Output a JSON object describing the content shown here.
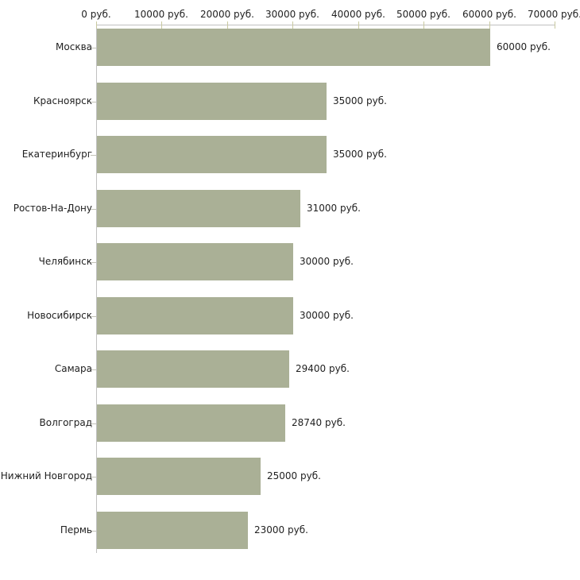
{
  "chart_data": {
    "type": "bar",
    "orientation": "horizontal",
    "title": "",
    "categories": [
      "Москва",
      "Красноярск",
      "Екатеринбург",
      "Ростов-На-Дону",
      "Челябинск",
      "Новосибирск",
      "Самара",
      "Волгоград",
      "Нижний Новгород",
      "Пермь"
    ],
    "values": [
      60000,
      35000,
      35000,
      31000,
      30000,
      30000,
      29400,
      28740,
      25000,
      23000
    ],
    "value_labels": [
      "60000 руб.",
      "35000 руб.",
      "35000 руб.",
      "31000 руб.",
      "30000 руб.",
      "30000 руб.",
      "29400 руб.",
      "28740 руб.",
      "25000 руб.",
      "23000 руб."
    ],
    "xlabel": "",
    "ylabel": "",
    "x_axis": {
      "min": 0,
      "max": 70000,
      "tick_interval": 10000,
      "tick_labels": [
        "0 руб.",
        "10000 руб.",
        "20000 руб.",
        "30000 руб.",
        "40000 руб.",
        "50000 руб.",
        "60000 руб.",
        "70000 руб."
      ]
    },
    "grid": false,
    "legend": false,
    "colors": {
      "bar_fill": "#aab096",
      "axis_line": "#c0c0c0",
      "x_tick": "#c9c9a0",
      "y_tick": "#c2c2b8",
      "text": "#1f1f1f",
      "background": "#ffffff"
    }
  }
}
